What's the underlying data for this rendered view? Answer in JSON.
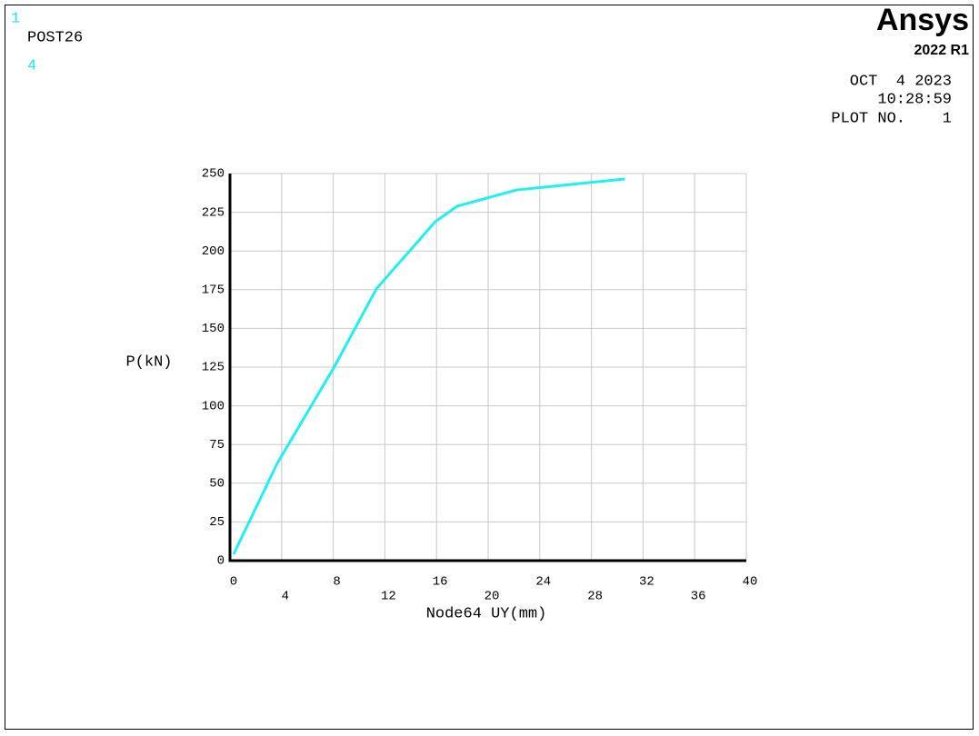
{
  "window_number": "1",
  "program": "POST26",
  "curve_number": "4",
  "brand": "Ansys",
  "version": "2022 R1",
  "date": "OCT  4 2023",
  "time": "10:28:59",
  "plot_number": "PLOT NO.    1",
  "chart_data": {
    "type": "line",
    "x_label": "Node64 UY(mm)",
    "y_label": "P(kN)",
    "x": [
      0.28,
      3.66,
      8.03,
      11.34,
      15.9,
      17.6,
      22.2,
      30.6
    ],
    "series": [
      {
        "name": "P(kN)",
        "color": "#22f0f0",
        "values": [
          4.1,
          62.8,
          124.4,
          175.5,
          218.9,
          228.9,
          239.4,
          246.5
        ]
      }
    ],
    "xlim": [
      0,
      40
    ],
    "xticks": [
      0,
      4,
      8,
      12,
      16,
      20,
      24,
      28,
      32,
      36,
      40
    ],
    "ylim": [
      0,
      250
    ],
    "yticks": [
      0,
      25,
      50,
      75,
      100,
      125,
      150,
      175,
      200,
      225,
      250
    ],
    "grid": true
  }
}
